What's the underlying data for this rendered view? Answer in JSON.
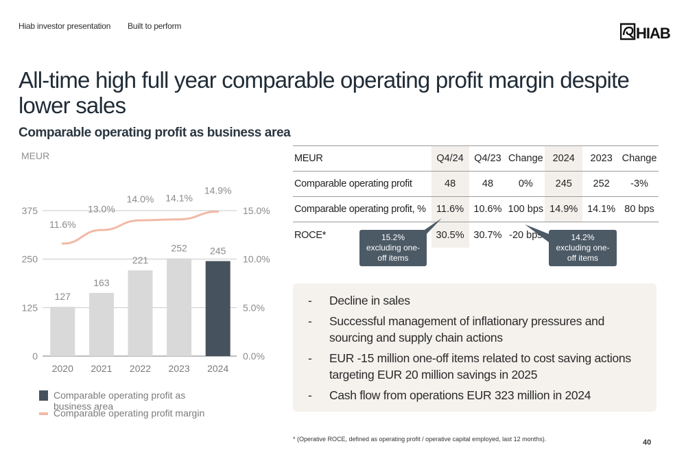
{
  "header": {
    "left_label": "Hiab investor presentation",
    "mid_label": "Built to perform",
    "logo_text": "HIAB"
  },
  "title": "All-time high full year comparable operating profit margin despite lower sales",
  "subtitle": "Comparable operating profit as business area",
  "chart_data": {
    "type": "bar",
    "unit_label": "MEUR",
    "categories": [
      "2020",
      "2021",
      "2022",
      "2023",
      "2024"
    ],
    "series": [
      {
        "name": "Comparable operating profit as business area",
        "type": "bar",
        "axis": "left",
        "values": [
          127,
          163,
          221,
          252,
          245
        ],
        "labels": [
          "127",
          "163",
          "221",
          "252",
          "245"
        ]
      },
      {
        "name": "Comparable operating profit margin",
        "type": "line",
        "axis": "right",
        "values": [
          11.6,
          13.0,
          14.0,
          14.1,
          14.9
        ],
        "labels": [
          "11.6%",
          "13.0%",
          "14.0%",
          "14.1%",
          "14.9%"
        ]
      }
    ],
    "ylim": [
      0,
      375
    ],
    "y_ticks": [
      "0",
      "125",
      "250",
      "375"
    ],
    "y2lim": [
      0,
      15
    ],
    "y2_ticks": [
      "0.0%",
      "5.0%",
      "10.0%",
      "15.0%"
    ],
    "colors": {
      "bar": "#d9d9d9",
      "bar_highlight": "#46535e",
      "line": "#f2b9a6",
      "text": "#8a8a8a"
    }
  },
  "legend": {
    "bar_label": "Comparable operating profit as business area",
    "line_label": "Comparable operating profit margin"
  },
  "table": {
    "headers": [
      "MEUR",
      "Q4/24",
      "Q4/23",
      "Change",
      "2024",
      "2023",
      "Change"
    ],
    "rows": [
      [
        "Comparable operating profit",
        "48",
        "48",
        "0%",
        "245",
        "252",
        "-3%"
      ],
      [
        "Comparable operating profit, %",
        "11.6%",
        "10.6%",
        "100 bps",
        "14.9%",
        "14.1%",
        "80 bps"
      ],
      [
        "ROCE*",
        "30.5%",
        "30.7%",
        "-20 bps",
        "",
        "",
        ""
      ]
    ]
  },
  "callouts": [
    "15.2% excluding one-off items",
    "14.2% excluding one-off items"
  ],
  "bullets": [
    "Decline in sales",
    "Successful management of inflationary pressures and sourcing and supply chain actions",
    "EUR -15 million one-off items related to cost saving actions targeting EUR 20 million savings in 2025",
    "Cash flow from operations EUR 323 million in 2024"
  ],
  "bullet_marker": "-",
  "footnote": "* (Operative ROCE, defined as operating profit / operative capital employed, last 12 months).",
  "page_number": "40"
}
